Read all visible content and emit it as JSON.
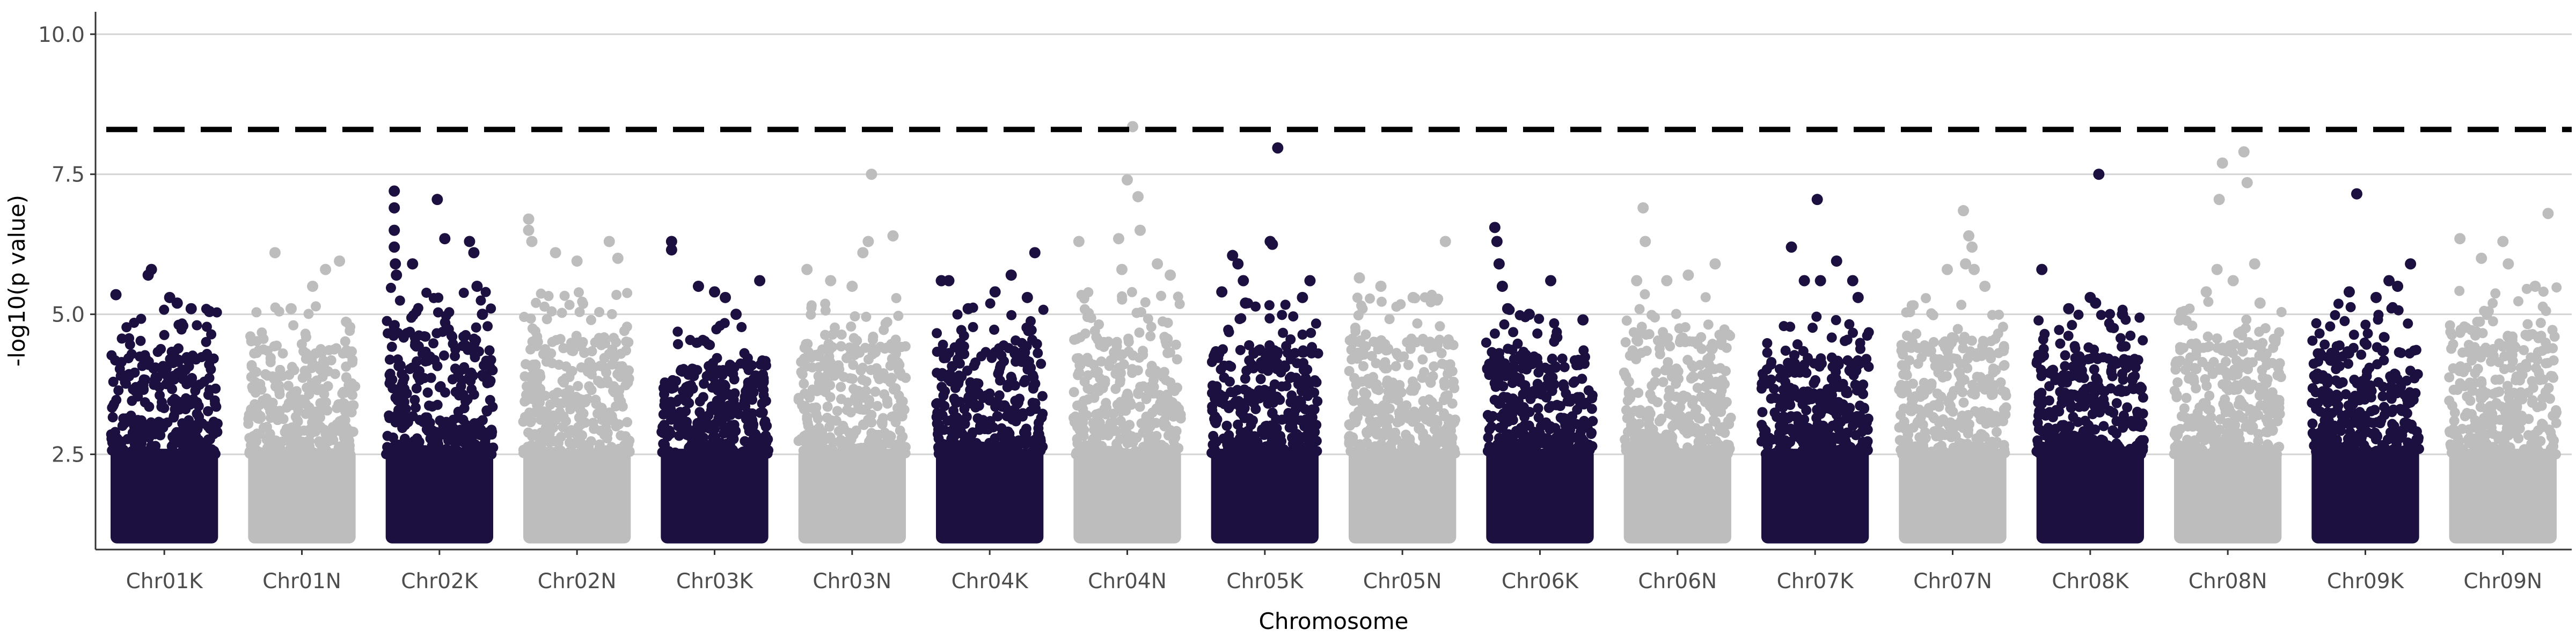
{
  "chart_data": {
    "type": "scatter",
    "title": "",
    "xlabel": "Chromosome",
    "ylabel": "-log10(p value)",
    "ylim": [
      0.8,
      10.4
    ],
    "yticks": [
      2.5,
      5.0,
      7.5,
      10.0
    ],
    "ytick_labels": [
      "2.5",
      "5.0",
      "7.5",
      "10.0"
    ],
    "grid": "horizontal major lines",
    "legend": "none",
    "threshold": 8.3,
    "colors": {
      "dark": "#1b1040",
      "light": "#bdbdbd",
      "grid": "#d4d4d4",
      "threshold": "#000000"
    },
    "series": [
      {
        "name": "Chr01K",
        "color": "dark",
        "dense_top": 4.2,
        "points": [
          [
            0.05,
            5.35
          ],
          [
            0.35,
            5.7
          ],
          [
            0.38,
            5.8
          ],
          [
            0.55,
            5.3
          ],
          [
            0.62,
            5.2
          ],
          [
            0.75,
            5.1
          ],
          [
            0.92,
            5.05
          ]
        ]
      },
      {
        "name": "Chr01N",
        "color": "light",
        "dense_top": 4.3,
        "points": [
          [
            0.25,
            6.1
          ],
          [
            0.6,
            5.5
          ],
          [
            0.72,
            5.8
          ],
          [
            0.85,
            5.95
          ],
          [
            0.4,
            5.1
          ]
        ]
      },
      {
        "name": "Chr02K",
        "color": "dark",
        "dense_top": 4.6,
        "points": [
          [
            0.08,
            7.2
          ],
          [
            0.08,
            6.9
          ],
          [
            0.08,
            6.5
          ],
          [
            0.08,
            6.2
          ],
          [
            0.09,
            5.9
          ],
          [
            0.1,
            5.7
          ],
          [
            0.25,
            5.9
          ],
          [
            0.48,
            7.05
          ],
          [
            0.55,
            6.35
          ],
          [
            0.78,
            6.3
          ],
          [
            0.82,
            6.1
          ],
          [
            0.85,
            5.5
          ],
          [
            0.9,
            5.0
          ]
        ]
      },
      {
        "name": "Chr02N",
        "color": "light",
        "dense_top": 4.5,
        "points": [
          [
            0.05,
            6.7
          ],
          [
            0.05,
            6.5
          ],
          [
            0.08,
            6.3
          ],
          [
            0.3,
            6.1
          ],
          [
            0.5,
            5.95
          ],
          [
            0.8,
            6.3
          ],
          [
            0.88,
            6.0
          ]
        ]
      },
      {
        "name": "Chr03K",
        "color": "dark",
        "dense_top": 4.0,
        "points": [
          [
            0.1,
            6.3
          ],
          [
            0.1,
            6.15
          ],
          [
            0.35,
            5.5
          ],
          [
            0.5,
            5.4
          ],
          [
            0.6,
            5.3
          ],
          [
            0.92,
            5.6
          ],
          [
            0.7,
            5.0
          ]
        ]
      },
      {
        "name": "Chr03N",
        "color": "light",
        "dense_top": 4.4,
        "points": [
          [
            0.08,
            5.8
          ],
          [
            0.3,
            5.6
          ],
          [
            0.5,
            5.5
          ],
          [
            0.6,
            6.1
          ],
          [
            0.65,
            6.3
          ],
          [
            0.68,
            7.5
          ],
          [
            0.88,
            6.4
          ]
        ]
      },
      {
        "name": "Chr04K",
        "color": "dark",
        "dense_top": 4.3,
        "points": [
          [
            0.05,
            5.6
          ],
          [
            0.12,
            5.6
          ],
          [
            0.3,
            5.1
          ],
          [
            0.55,
            5.4
          ],
          [
            0.7,
            5.7
          ],
          [
            0.85,
            5.3
          ],
          [
            0.92,
            6.1
          ]
        ]
      },
      {
        "name": "Chr04N",
        "color": "light",
        "dense_top": 4.5,
        "points": [
          [
            0.05,
            6.3
          ],
          [
            0.42,
            6.35
          ],
          [
            0.45,
            5.8
          ],
          [
            0.5,
            7.4
          ],
          [
            0.55,
            8.35
          ],
          [
            0.6,
            7.1
          ],
          [
            0.62,
            6.5
          ],
          [
            0.78,
            5.9
          ],
          [
            0.9,
            5.7
          ]
        ]
      },
      {
        "name": "Chr05K",
        "color": "dark",
        "dense_top": 4.3,
        "points": [
          [
            0.1,
            5.4
          ],
          [
            0.2,
            6.05
          ],
          [
            0.25,
            5.9
          ],
          [
            0.3,
            5.6
          ],
          [
            0.32,
            5.2
          ],
          [
            0.55,
            6.3
          ],
          [
            0.57,
            6.25
          ],
          [
            0.62,
            7.97
          ],
          [
            0.85,
            5.3
          ],
          [
            0.92,
            5.6
          ]
        ]
      },
      {
        "name": "Chr05N",
        "color": "light",
        "dense_top": 4.5,
        "points": [
          [
            0.1,
            5.65
          ],
          [
            0.3,
            5.5
          ],
          [
            0.6,
            5.3
          ],
          [
            0.9,
            6.3
          ]
        ]
      },
      {
        "name": "Chr06K",
        "color": "dark",
        "dense_top": 4.2,
        "points": [
          [
            0.08,
            6.55
          ],
          [
            0.1,
            6.3
          ],
          [
            0.12,
            5.9
          ],
          [
            0.15,
            5.5
          ],
          [
            0.2,
            5.1
          ],
          [
            0.4,
            5.0
          ],
          [
            0.6,
            5.6
          ],
          [
            0.9,
            4.9
          ]
        ]
      },
      {
        "name": "Chr06N",
        "color": "light",
        "dense_top": 4.5,
        "points": [
          [
            0.12,
            5.6
          ],
          [
            0.18,
            6.9
          ],
          [
            0.2,
            6.3
          ],
          [
            0.4,
            5.6
          ],
          [
            0.6,
            5.7
          ],
          [
            0.85,
            5.9
          ]
        ]
      },
      {
        "name": "Chr07K",
        "color": "dark",
        "dense_top": 4.1,
        "points": [
          [
            0.28,
            6.2
          ],
          [
            0.4,
            5.6
          ],
          [
            0.52,
            7.05
          ],
          [
            0.55,
            5.6
          ],
          [
            0.7,
            5.95
          ],
          [
            0.85,
            5.6
          ],
          [
            0.9,
            5.3
          ]
        ]
      },
      {
        "name": "Chr07N",
        "color": "light",
        "dense_top": 4.4,
        "points": [
          [
            0.45,
            5.8
          ],
          [
            0.6,
            6.85
          ],
          [
            0.62,
            5.9
          ],
          [
            0.65,
            6.4
          ],
          [
            0.68,
            6.2
          ],
          [
            0.7,
            5.8
          ],
          [
            0.8,
            5.5
          ]
        ]
      },
      {
        "name": "Chr08K",
        "color": "dark",
        "dense_top": 4.2,
        "points": [
          [
            0.05,
            5.8
          ],
          [
            0.3,
            5.1
          ],
          [
            0.5,
            5.3
          ],
          [
            0.55,
            5.2
          ],
          [
            0.58,
            7.5
          ],
          [
            0.8,
            5.0
          ]
        ]
      },
      {
        "name": "Chr08N",
        "color": "light",
        "dense_top": 4.4,
        "points": [
          [
            0.05,
            4.9
          ],
          [
            0.3,
            5.4
          ],
          [
            0.4,
            5.8
          ],
          [
            0.42,
            7.05
          ],
          [
            0.45,
            7.7
          ],
          [
            0.55,
            5.6
          ],
          [
            0.65,
            7.9
          ],
          [
            0.68,
            7.35
          ],
          [
            0.75,
            5.9
          ],
          [
            0.8,
            5.2
          ]
        ]
      },
      {
        "name": "Chr09K",
        "color": "dark",
        "dense_top": 4.3,
        "points": [
          [
            0.35,
            5.4
          ],
          [
            0.42,
            7.15
          ],
          [
            0.6,
            5.3
          ],
          [
            0.72,
            5.6
          ],
          [
            0.8,
            5.5
          ],
          [
            0.92,
            5.9
          ]
        ]
      },
      {
        "name": "Chr09N",
        "color": "light",
        "dense_top": 4.6,
        "points": [
          [
            0.1,
            6.35
          ],
          [
            0.3,
            6.0
          ],
          [
            0.5,
            6.3
          ],
          [
            0.55,
            5.9
          ],
          [
            0.8,
            5.5
          ],
          [
            0.92,
            6.8
          ]
        ]
      }
    ]
  }
}
